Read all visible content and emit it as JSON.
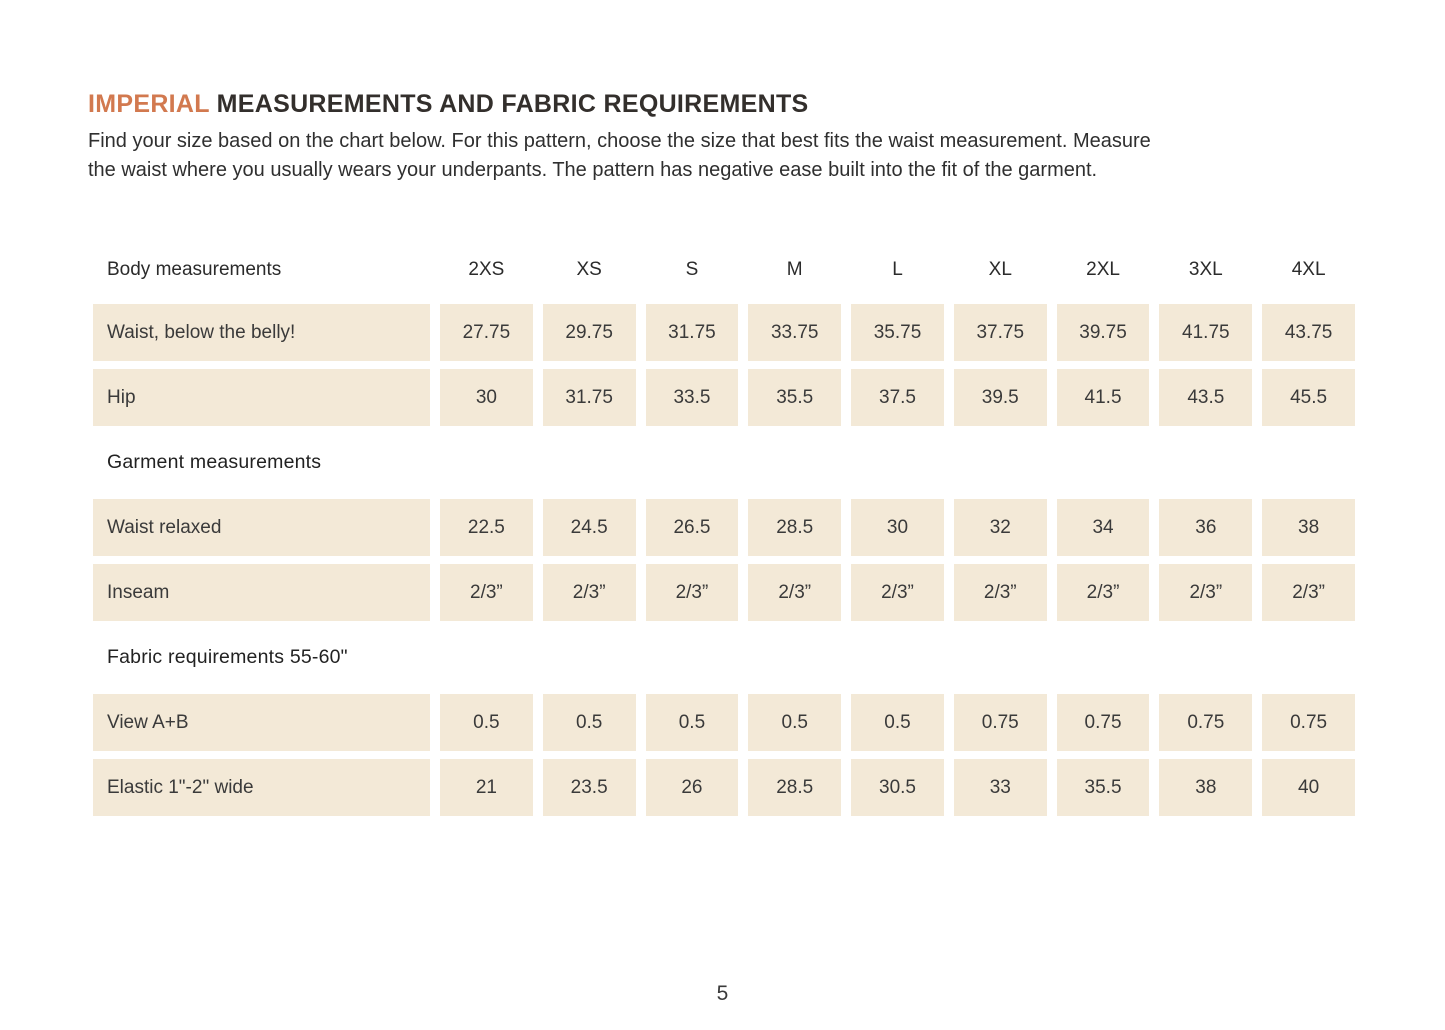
{
  "page": {
    "title_highlight": "IMPERIAL",
    "title_rest": " MEASUREMENTS AND FABRIC REQUIREMENTS",
    "intro_lines": [
      "Find your size based on the chart below. For this pattern, choose the size that best fits the waist measurement. Measure",
      "the waist where you usually wears your underpants. The pattern has negative ease built into the fit of the garment."
    ],
    "page_number": "5"
  },
  "colors": {
    "accent": "#d2794f",
    "cell_background": "#f3e9d7",
    "text": "#333333"
  },
  "chart_data": {
    "type": "table",
    "title": "IMPERIAL MEASUREMENTS AND FABRIC REQUIREMENTS",
    "columns": [
      "2XS",
      "XS",
      "S",
      "M",
      "L",
      "XL",
      "2XL",
      "3XL",
      "4XL"
    ],
    "rows": [
      {
        "section": "Body measurements",
        "label": "Waist, below the belly!",
        "values": [
          "27.75",
          "29.75",
          "31.75",
          "33.75",
          "35.75",
          "37.75",
          "39.75",
          "41.75",
          "43.75"
        ]
      },
      {
        "section": "Body measurements",
        "label": "Hip",
        "values": [
          "30",
          "31.75",
          "33.5",
          "35.5",
          "37.5",
          "39.5",
          "41.5",
          "43.5",
          "45.5"
        ]
      },
      {
        "section": "Garment measurements",
        "label": "Waist relaxed",
        "values": [
          "22.5",
          "24.5",
          "26.5",
          "28.5",
          "30",
          "32",
          "34",
          "36",
          "38"
        ]
      },
      {
        "section": "Garment measurements",
        "label": "Inseam",
        "values": [
          "2/3”",
          "2/3”",
          "2/3”",
          "2/3”",
          "2/3”",
          "2/3”",
          "2/3”",
          "2/3”",
          "2/3”"
        ]
      },
      {
        "section": "Fabric requirements 55-60\"",
        "label": "View A+B",
        "values": [
          "0.5",
          "0.5",
          "0.5",
          "0.5",
          "0.5",
          "0.75",
          "0.75",
          "0.75",
          "0.75"
        ]
      },
      {
        "section": "Fabric requirements 55-60\"",
        "label": "Elastic 1\"-2\" wide",
        "values": [
          "21",
          "23.5",
          "26",
          "28.5",
          "30.5",
          "33",
          "35.5",
          "38",
          "40"
        ]
      }
    ]
  },
  "table": {
    "header": {
      "label": "Body measurements",
      "sizes": [
        "2XS",
        "XS",
        "S",
        "M",
        "L",
        "XL",
        "2XL",
        "3XL",
        "4XL"
      ]
    },
    "sections": [
      {
        "heading": null,
        "rows": [
          {
            "label": "Waist, below the belly!",
            "values": [
              "27.75",
              "29.75",
              "31.75",
              "33.75",
              "35.75",
              "37.75",
              "39.75",
              "41.75",
              "43.75"
            ]
          },
          {
            "label": "Hip",
            "values": [
              "30",
              "31.75",
              "33.5",
              "35.5",
              "37.5",
              "39.5",
              "41.5",
              "43.5",
              "45.5"
            ]
          }
        ]
      },
      {
        "heading": "Garment measurements",
        "rows": [
          {
            "label": "Waist relaxed",
            "values": [
              "22.5",
              "24.5",
              "26.5",
              "28.5",
              "30",
              "32",
              "34",
              "36",
              "38"
            ]
          },
          {
            "label": "Inseam",
            "values": [
              "2/3”",
              "2/3”",
              "2/3”",
              "2/3”",
              "2/3”",
              "2/3”",
              "2/3”",
              "2/3”",
              "2/3”"
            ]
          }
        ]
      },
      {
        "heading": "Fabric requirements 55-60\"",
        "rows": [
          {
            "label": "View A+B",
            "values": [
              "0.5",
              "0.5",
              "0.5",
              "0.5",
              "0.5",
              "0.75",
              "0.75",
              "0.75",
              "0.75"
            ]
          },
          {
            "label": "Elastic 1\"-2\" wide",
            "values": [
              "21",
              "23.5",
              "26",
              "28.5",
              "30.5",
              "33",
              "35.5",
              "38",
              "40"
            ]
          }
        ]
      }
    ]
  }
}
